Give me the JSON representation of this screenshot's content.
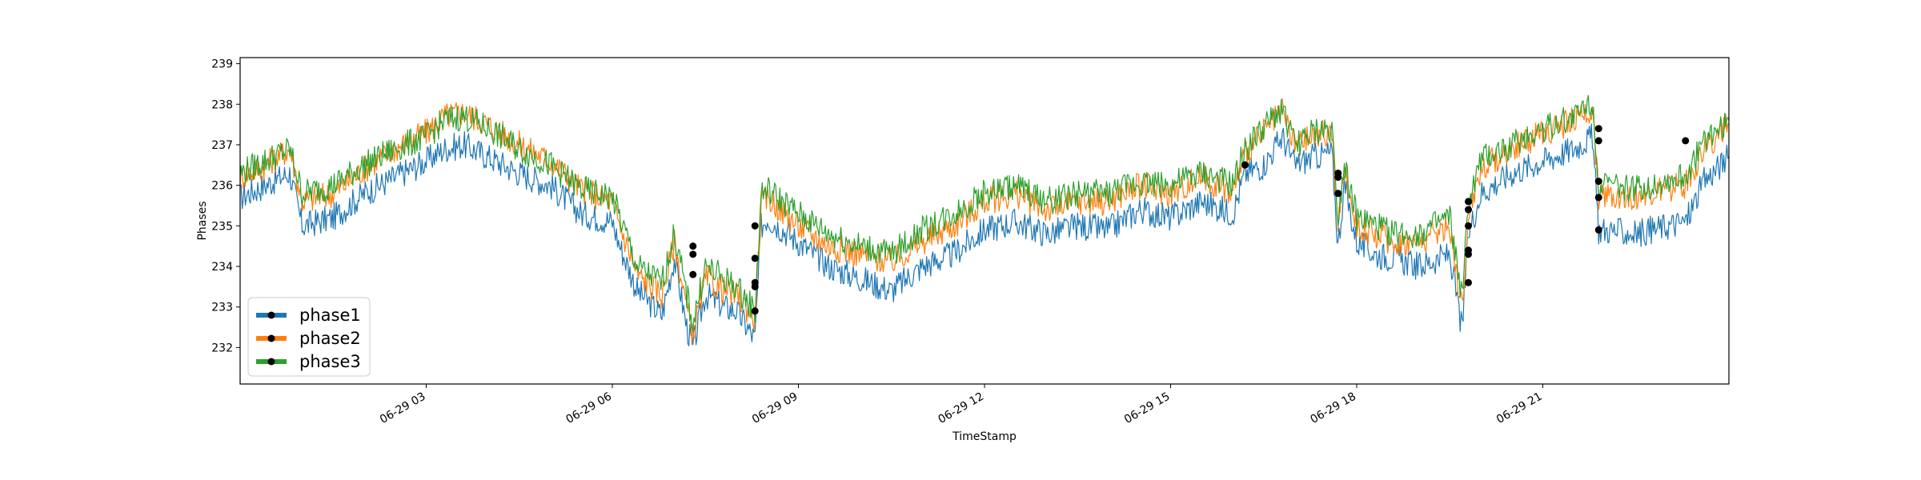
{
  "chart_data": {
    "type": "line",
    "title": "",
    "xlabel": "TimeStamp",
    "ylabel": "Phases",
    "ylim": [
      231.1,
      239.15
    ],
    "xlim_hours": [
      0.0,
      24.0
    ],
    "x_tick_labels": [
      "06-29 03",
      "06-29 06",
      "06-29 09",
      "06-29 12",
      "06-29 15",
      "06-29 18",
      "06-29 21"
    ],
    "x_tick_hours": [
      3,
      6,
      9,
      12,
      15,
      18,
      21
    ],
    "y_ticks": [
      232,
      233,
      234,
      235,
      236,
      237,
      238,
      239
    ],
    "y_tick_labels": [
      "232",
      "233",
      "234",
      "235",
      "236",
      "237",
      "238",
      "239"
    ],
    "grid": false,
    "legend": "lower-left",
    "legend_labels": [
      "phase1",
      "phase2",
      "phase3"
    ],
    "x": [
      0,
      0.4,
      0.8,
      1.0,
      1.5,
      2.0,
      2.5,
      3.0,
      3.3,
      3.6,
      4.0,
      4.5,
      5.0,
      5.5,
      6.0,
      6.1,
      6.4,
      6.8,
      7.0,
      7.2,
      7.3,
      7.5,
      7.8,
      8.0,
      8.3,
      8.4,
      8.5,
      9.0,
      9.5,
      10.0,
      10.5,
      11.0,
      11.5,
      12.0,
      12.5,
      13.0,
      13.5,
      14.0,
      14.5,
      15.0,
      15.5,
      16.0,
      16.2,
      16.5,
      16.8,
      17.0,
      17.3,
      17.6,
      17.7,
      17.8,
      18.0,
      18.3,
      18.6,
      19.0,
      19.5,
      19.7,
      19.8,
      20.0,
      20.5,
      21.0,
      21.5,
      21.8,
      21.9,
      22.0,
      22.5,
      23.0,
      23.3,
      23.6,
      24.0
    ],
    "series": [
      {
        "name": "phase1",
        "color": "#1f77b4",
        "values": [
          235.7,
          236.0,
          236.3,
          235.0,
          235.2,
          235.8,
          236.2,
          236.6,
          236.9,
          237.0,
          236.7,
          236.3,
          236.0,
          235.3,
          235.1,
          234.6,
          233.4,
          232.8,
          234.2,
          232.5,
          232.0,
          233.3,
          233.0,
          232.9,
          232.2,
          235.0,
          235.2,
          234.6,
          234.0,
          233.7,
          233.4,
          234.0,
          234.3,
          234.9,
          235.1,
          234.8,
          235.0,
          234.9,
          235.4,
          235.2,
          235.6,
          235.3,
          236.3,
          236.5,
          237.2,
          236.5,
          236.7,
          236.8,
          234.5,
          236.0,
          234.6,
          234.3,
          234.2,
          234.0,
          234.3,
          232.4,
          234.8,
          235.8,
          236.3,
          236.6,
          236.9,
          237.2,
          234.9,
          234.9,
          234.8,
          235.0,
          235.1,
          236.1,
          236.7
        ]
      },
      {
        "name": "phase2",
        "color": "#ff7f0e",
        "values": [
          236.2,
          236.5,
          236.9,
          235.6,
          235.8,
          236.4,
          236.9,
          237.3,
          237.7,
          237.8,
          237.5,
          237.0,
          236.6,
          235.9,
          235.6,
          235.1,
          233.8,
          233.3,
          234.6,
          233.0,
          232.3,
          233.7,
          233.4,
          233.3,
          232.7,
          235.5,
          235.7,
          235.0,
          234.5,
          234.3,
          234.1,
          234.6,
          235.0,
          235.6,
          235.8,
          235.4,
          235.6,
          235.6,
          236.0,
          235.8,
          236.2,
          235.8,
          236.8,
          237.3,
          237.8,
          237.0,
          237.2,
          237.3,
          234.9,
          236.4,
          235.0,
          234.8,
          234.6,
          234.6,
          235.0,
          232.9,
          235.3,
          236.4,
          236.9,
          237.3,
          237.6,
          237.9,
          235.7,
          235.8,
          235.7,
          235.9,
          236.0,
          236.9,
          237.5
        ]
      },
      {
        "name": "phase3",
        "color": "#2ca02c",
        "values": [
          236.3,
          236.6,
          236.9,
          235.8,
          236.0,
          236.5,
          236.9,
          237.2,
          237.6,
          237.7,
          237.4,
          236.9,
          236.5,
          235.9,
          235.7,
          235.3,
          234.0,
          233.6,
          234.8,
          233.3,
          232.6,
          234.0,
          233.7,
          233.5,
          232.9,
          235.8,
          235.9,
          235.3,
          234.8,
          234.5,
          234.3,
          234.9,
          235.3,
          235.8,
          236.0,
          235.6,
          235.8,
          235.8,
          236.1,
          236.0,
          236.3,
          236.0,
          236.9,
          237.4,
          237.9,
          237.0,
          237.3,
          237.4,
          235.2,
          236.6,
          235.2,
          235.0,
          234.8,
          234.8,
          235.2,
          233.2,
          235.5,
          236.6,
          237.0,
          237.4,
          237.7,
          238.1,
          236.0,
          236.0,
          235.9,
          236.1,
          236.2,
          237.1,
          237.6
        ]
      }
    ],
    "markers": {
      "color": "#000000",
      "x": [
        7.3,
        7.3,
        7.3,
        8.3,
        8.3,
        8.3,
        8.3,
        8.3,
        16.2,
        17.7,
        17.7,
        17.7,
        19.8,
        19.8,
        19.8,
        19.8,
        19.8,
        19.8,
        21.9,
        21.9,
        21.9,
        21.9,
        21.9,
        23.3
      ],
      "y": [
        234.5,
        234.3,
        233.8,
        235.0,
        234.2,
        233.6,
        233.5,
        232.9,
        236.5,
        236.2,
        236.3,
        235.8,
        235.6,
        235.4,
        235.0,
        234.4,
        234.3,
        233.6,
        237.4,
        237.1,
        236.1,
        235.7,
        234.9,
        237.1
      ]
    }
  }
}
